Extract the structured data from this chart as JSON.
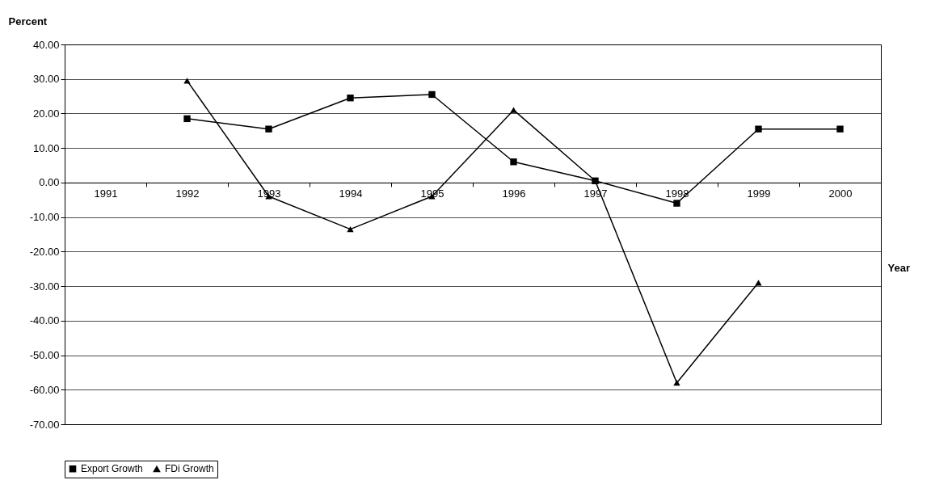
{
  "chart_data": {
    "type": "line",
    "ylabel": "Percent",
    "xlabel": "Year",
    "categories": [
      "1991",
      "1992",
      "1993",
      "1994",
      "1995",
      "1996",
      "1997",
      "1998",
      "1999",
      "2000"
    ],
    "series": [
      {
        "name": "Export Growth",
        "color": "#000000",
        "marker": "square",
        "values": [
          null,
          18.5,
          15.5,
          24.5,
          25.5,
          6,
          0.5,
          -6,
          15.5,
          15.5
        ]
      },
      {
        "name": "FDi Growth",
        "color": "#000000",
        "marker": "triangle",
        "values": [
          null,
          29.5,
          -4,
          -13.5,
          -4,
          21,
          0.5,
          -58,
          -29,
          null
        ]
      }
    ],
    "ylim": [
      -70,
      40
    ],
    "yticks": [
      {
        "value": -70,
        "label": "-70.00"
      },
      {
        "value": -60,
        "label": "-60.00"
      },
      {
        "value": -50,
        "label": "-50.00"
      },
      {
        "value": -40,
        "label": "-40.00"
      },
      {
        "value": -30,
        "label": "-30.00"
      },
      {
        "value": -20,
        "label": "-20.00"
      },
      {
        "value": -10,
        "label": "-10.00"
      },
      {
        "value": 0,
        "label": "0.00"
      },
      {
        "value": 10,
        "label": "10.00"
      },
      {
        "value": 20,
        "label": "20.00"
      },
      {
        "value": 30,
        "label": "30.00"
      },
      {
        "value": 40,
        "label": "40.00"
      }
    ],
    "grid": "y",
    "legend": "bottom"
  }
}
